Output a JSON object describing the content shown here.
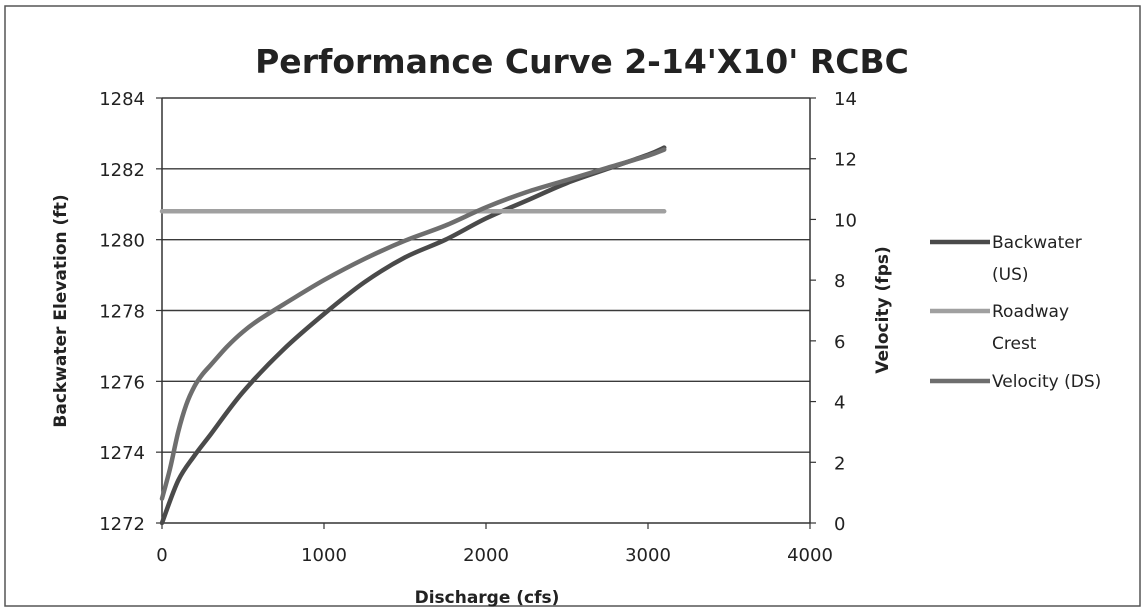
{
  "chart_data": {
    "type": "line",
    "title": "Performance Curve 2-14'X10' RCBC",
    "xlabel": "Discharge (cfs)",
    "ylabel": "Backwater Elevation (ft)",
    "y2label": "Velocity (fps)",
    "xlim": [
      0,
      4000
    ],
    "ylim": [
      1272,
      1284
    ],
    "y2lim": [
      0,
      14
    ],
    "xticks": [
      0,
      1000,
      2000,
      3000,
      4000
    ],
    "yticks": [
      1272,
      1274,
      1276,
      1278,
      1280,
      1282,
      1284
    ],
    "y2ticks": [
      0,
      2,
      4,
      6,
      8,
      10,
      12,
      14
    ],
    "grid": true,
    "legend_position": "right",
    "series": [
      {
        "name": "Backwater (US)",
        "axis": "left",
        "color": "#4a4a4a",
        "x": [
          0,
          100,
          200,
          300,
          500,
          750,
          1000,
          1250,
          1500,
          1750,
          2000,
          2250,
          2500,
          2750,
          3000,
          3100
        ],
        "y": [
          1272.0,
          1273.2,
          1273.9,
          1274.5,
          1275.7,
          1276.9,
          1277.9,
          1278.8,
          1279.5,
          1280.0,
          1280.6,
          1281.1,
          1281.6,
          1282.0,
          1282.4,
          1282.6
        ]
      },
      {
        "name": "Roadway Crest",
        "axis": "left",
        "color": "#a0a0a0",
        "x": [
          0,
          3100
        ],
        "y": [
          1280.8,
          1280.8
        ]
      },
      {
        "name": "Velocity (DS)",
        "axis": "right",
        "color": "#6e6e6e",
        "x": [
          0,
          50,
          100,
          150,
          200,
          250,
          300,
          400,
          500,
          600,
          750,
          1000,
          1250,
          1500,
          1750,
          2000,
          2250,
          2500,
          2750,
          3000,
          3100
        ],
        "y": [
          0.8,
          1.8,
          3.0,
          3.9,
          4.5,
          4.9,
          5.2,
          5.8,
          6.3,
          6.7,
          7.2,
          8.0,
          8.7,
          9.3,
          9.8,
          10.4,
          10.9,
          11.3,
          11.7,
          12.1,
          12.3
        ]
      }
    ]
  }
}
